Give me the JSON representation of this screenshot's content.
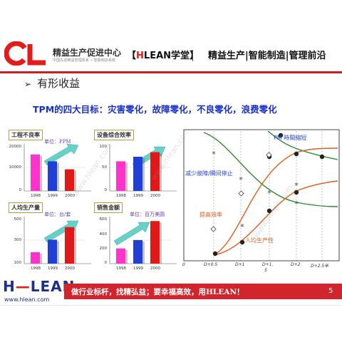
{
  "header": {
    "org_name": "精益生产促进中心",
    "org_subtitle": "中国先进精益管理体系 • 智能制造系统",
    "brand_open": "【",
    "brand_h": "H",
    "brand_lean": "LEAN学堂",
    "brand_close": "】",
    "tags": "精益生产|智能制造|管理前沿"
  },
  "section_title": "有形收益",
  "tpm_goal": "TPM的四大目标：灾害零化，故障零化，不良零化，浪费零化",
  "mini_charts": [
    {
      "title": "工程不良率",
      "unit": "单位：PPM",
      "years": [
        "1998",
        "1999",
        "2000"
      ],
      "values": [
        16000,
        13000,
        9500
      ],
      "y_ticks": [
        "20000",
        "10000",
        "0"
      ],
      "colors": [
        "#ff33cc",
        "#1f3fd6",
        "#e01818"
      ]
    },
    {
      "title": "设备综合效率",
      "unit": "",
      "years": [
        "1998",
        "1999",
        "2000"
      ],
      "values": [
        65,
        75,
        85
      ],
      "y_ticks": [
        "100",
        "50",
        "0"
      ],
      "colors": [
        "#ff33cc",
        "#1f3fd6",
        "#e01818"
      ]
    },
    {
      "title": "人均生产量",
      "unit": "单位：台/套",
      "years": [
        "1998",
        "1999",
        "2000"
      ],
      "values": [
        200,
        310,
        420
      ],
      "y_ticks": [
        "500",
        "300",
        "100"
      ],
      "colors": [
        "#ff33cc",
        "#1f3fd6",
        "#e01818"
      ]
    },
    {
      "title": "销售金额",
      "unit": "单位：百万美圆",
      "years": [
        "1998",
        "1999",
        "2000"
      ],
      "values": [
        200,
        310,
        560
      ],
      "y_ticks": [
        "600",
        "400",
        "200",
        "0"
      ],
      "colors": [
        "#ff33cc",
        "#1f3fd6",
        "#e01818"
      ]
    }
  ],
  "curve_chart": {
    "labels": {
      "pm": "PM 時間縮短",
      "failure": "减少故障/瞬间停止",
      "efficiency": "提高效率",
      "productivity": "人均生产性"
    },
    "x_ticks": [
      "0",
      "D+0.5",
      "D+1",
      "D+1.",
      "D+2",
      "D+2.5年"
    ],
    "x_sub": "5"
  },
  "watermark": "www.hlean.com",
  "footer": {
    "logo_h": "H",
    "logo_dash": "—",
    "logo_lean": "LEAN",
    "url": "www.hlean.com",
    "slogan": "做行业标杆，找精弘益；要幸福高效，用HLEAN！",
    "page_number": "5"
  },
  "colors": {
    "accent_red": "#d0252d",
    "brand_blue": "#1d2f8a",
    "goal_blue": "#1a2ec8"
  }
}
